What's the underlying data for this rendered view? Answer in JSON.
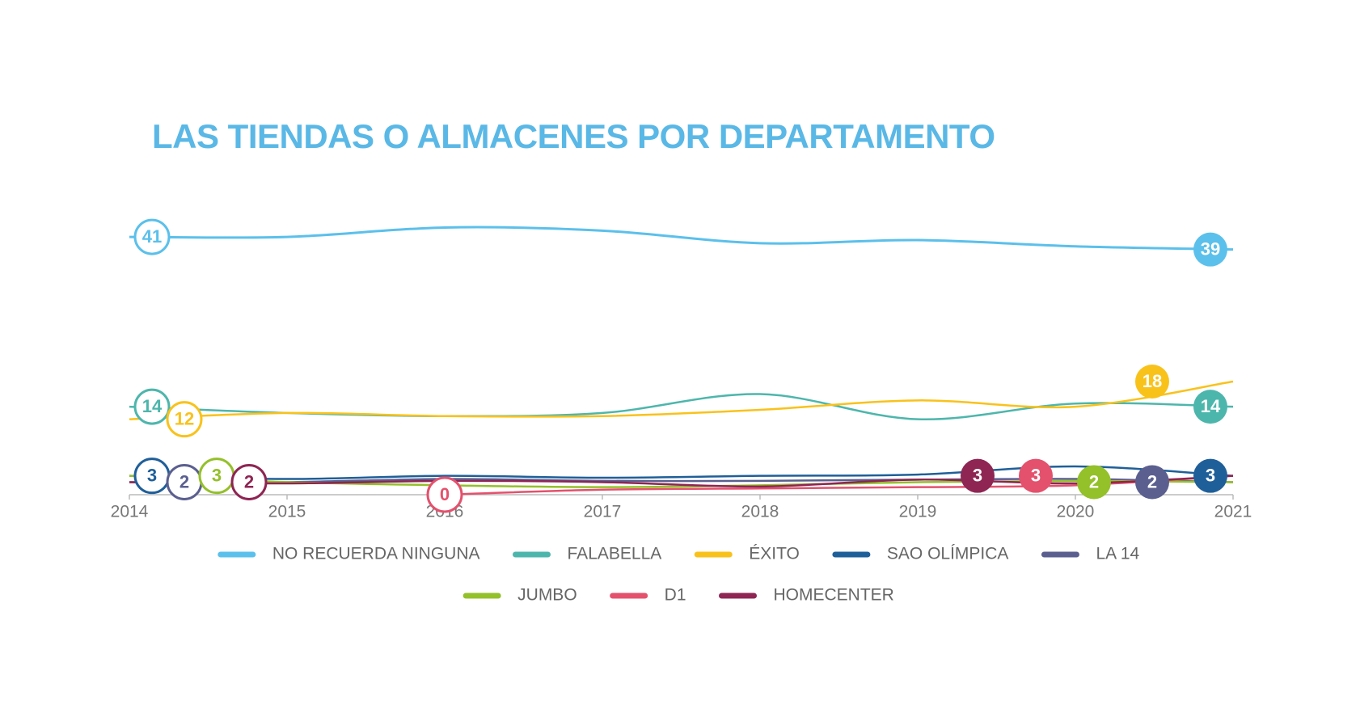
{
  "chart_data": {
    "type": "line",
    "title": "LAS TIENDAS O ALMACENES POR DEPARTAMENTO",
    "x": [
      2014,
      2015,
      2016,
      2017,
      2018,
      2019,
      2020,
      2021
    ],
    "xlim": [
      2014,
      2021
    ],
    "xticks": [
      2014,
      2015,
      2016,
      2017,
      2018,
      2019,
      2020,
      2021
    ],
    "ylim": [
      0,
      45
    ],
    "series": [
      {
        "name": "NO RECUERDA NINGUNA",
        "color": "#5bc0eb",
        "values": [
          41,
          41,
          42.5,
          42,
          40,
          40.5,
          39.5,
          39
        ]
      },
      {
        "name": "FALABELLA",
        "color": "#4db6ac",
        "values": [
          14,
          13,
          12.5,
          13,
          16,
          12,
          14.5,
          14
        ]
      },
      {
        "name": "ÉXITO",
        "color": "#f9c21b",
        "values": [
          12,
          13,
          12.5,
          12.5,
          13.5,
          15,
          14,
          18
        ]
      },
      {
        "name": "SAO OLÍMPICA",
        "color": "#1f5f99",
        "values": [
          3,
          2.5,
          3,
          2.7,
          3,
          3.2,
          4.5,
          3
        ]
      },
      {
        "name": "LA 14",
        "color": "#5b5f8f",
        "values": [
          2,
          2,
          2.5,
          2.2,
          2.2,
          2.4,
          2.5,
          2
        ]
      },
      {
        "name": "JUMBO",
        "color": "#94c02a",
        "values": [
          3,
          2,
          1.5,
          1.2,
          1.5,
          2,
          2.2,
          2
        ]
      },
      {
        "name": "D1",
        "color": "#e4516d",
        "values": [
          null,
          null,
          0,
          0.8,
          1,
          1.2,
          1.5,
          3
        ]
      },
      {
        "name": "HOMECENTER",
        "color": "#8e2553",
        "values": [
          2,
          1.8,
          2.2,
          2,
          1.3,
          2.4,
          1.8,
          3
        ]
      }
    ]
  }
}
